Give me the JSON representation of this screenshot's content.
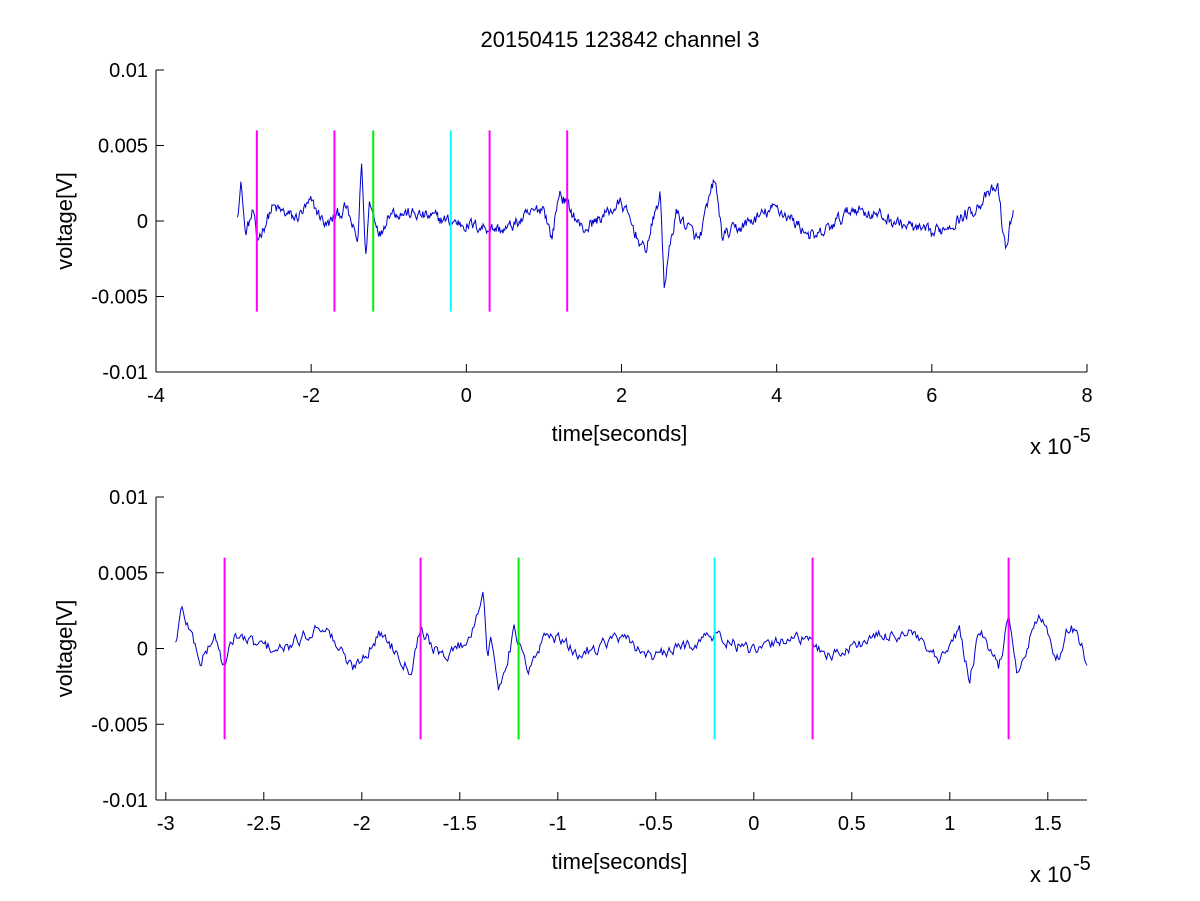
{
  "figure_title": "20150415 123842 channel 3",
  "colors": {
    "signal": "#0000cc",
    "magenta": "#ff00ff",
    "green": "#00ee00",
    "cyan": "#00ffff",
    "axis": "#000000"
  },
  "chart_data": [
    {
      "type": "line",
      "title": "20150415 123842 channel 3",
      "xlabel": "time[seconds]",
      "ylabel": "voltage[V]",
      "x_exponent": "x 10",
      "x_exponent_power": "-5",
      "xlim": [
        -4,
        8
      ],
      "ylim": [
        -0.01,
        0.01
      ],
      "x_ticks": [
        -4,
        -2,
        0,
        2,
        4,
        6,
        8
      ],
      "x_tick_labels": [
        "-4",
        "-2",
        "0",
        "2",
        "4",
        "6",
        "8"
      ],
      "y_ticks": [
        0.01,
        0.005,
        0,
        -0.005,
        -0.01
      ],
      "y_tick_labels": [
        "0.01",
        "0.005",
        "0",
        "-0.005",
        "-0.01"
      ],
      "grid": false,
      "signal": {
        "x_range": [
          -2.95,
          7.05
        ],
        "x": [
          -2.95,
          -2.9,
          -2.85,
          -2.75,
          -2.7,
          -2.5,
          -2.2,
          -2.0,
          -1.8,
          -1.55,
          -1.4,
          -1.35,
          -1.3,
          -1.25,
          -1.1,
          -1.0,
          -0.5,
          0.0,
          0.5,
          1.0,
          1.1,
          1.2,
          1.5,
          2.0,
          2.3,
          2.5,
          2.55,
          2.7,
          3.0,
          3.2,
          3.3,
          4.0,
          4.5,
          5.0,
          6.0,
          6.5,
          6.85,
          6.95,
          7.05
        ],
        "y": [
          0.0008,
          0.0034,
          -0.0012,
          0.0008,
          -0.0018,
          0.0012,
          0.0002,
          0.0016,
          -0.0004,
          0.0012,
          -0.002,
          0.0054,
          -0.0033,
          0.0016,
          -0.0012,
          0.0009,
          0.0004,
          -0.0003,
          -0.0008,
          0.0013,
          -0.0016,
          0.0026,
          -0.0008,
          0.0016,
          -0.0028,
          0.0024,
          -0.0056,
          0.0008,
          -0.0018,
          0.0038,
          -0.0014,
          0.0012,
          -0.0016,
          0.0012,
          -0.0012,
          0.0008,
          0.003,
          -0.0027,
          0.0012
        ]
      },
      "markers": [
        {
          "x": -2.7,
          "color": "magenta",
          "y_range": [
            -0.006,
            0.006
          ]
        },
        {
          "x": -1.7,
          "color": "magenta",
          "y_range": [
            -0.006,
            0.006
          ]
        },
        {
          "x": -1.2,
          "color": "green",
          "y_range": [
            -0.006,
            0.006
          ]
        },
        {
          "x": -0.2,
          "color": "cyan",
          "y_range": [
            -0.006,
            0.006
          ]
        },
        {
          "x": 0.3,
          "color": "magenta",
          "y_range": [
            -0.006,
            0.006
          ]
        },
        {
          "x": 1.3,
          "color": "magenta",
          "y_range": [
            -0.006,
            0.006
          ]
        }
      ]
    },
    {
      "type": "line",
      "title": "",
      "xlabel": "time[seconds]",
      "ylabel": "voltage[V]",
      "x_exponent": "x 10",
      "x_exponent_power": "-5",
      "xlim": [
        -3.05,
        1.7
      ],
      "ylim": [
        -0.01,
        0.01
      ],
      "x_ticks": [
        -3,
        -2.5,
        -2,
        -1.5,
        -1,
        -0.5,
        0,
        0.5,
        1,
        1.5
      ],
      "x_tick_labels": [
        "-3",
        "-2.5",
        "-2",
        "-1.5",
        "-1",
        "-0.5",
        "0",
        "0.5",
        "1",
        "1.5"
      ],
      "y_ticks": [
        0.01,
        0.005,
        0,
        -0.005,
        -0.01
      ],
      "y_tick_labels": [
        "0.01",
        "0.005",
        "0",
        "-0.005",
        "-0.01"
      ],
      "grid": false,
      "signal": {
        "x_range": [
          -2.95,
          1.7
        ],
        "x": [
          -2.95,
          -2.92,
          -2.88,
          -2.82,
          -2.75,
          -2.7,
          -2.65,
          -2.55,
          -2.4,
          -2.2,
          -2.05,
          -1.9,
          -1.75,
          -1.7,
          -1.6,
          -1.45,
          -1.38,
          -1.36,
          -1.34,
          -1.3,
          -1.22,
          -1.15,
          -1.05,
          -0.9,
          -0.7,
          -0.5,
          -0.3,
          -0.2,
          0.0,
          0.2,
          0.4,
          0.6,
          0.8,
          0.95,
          1.05,
          1.1,
          1.15,
          1.25,
          1.3,
          1.35,
          1.45,
          1.55,
          1.62,
          1.7
        ],
        "y": [
          0.0005,
          0.0034,
          0.0018,
          -0.0012,
          0.0012,
          -0.0018,
          0.0012,
          0.0004,
          -0.0002,
          0.0022,
          -0.0018,
          0.0014,
          -0.0018,
          0.002,
          -0.0008,
          0.0008,
          0.0054,
          -0.0008,
          0.0006,
          -0.0034,
          0.0016,
          -0.0022,
          0.0016,
          -0.0006,
          0.001,
          -0.0008,
          0.0006,
          0.0012,
          -0.0004,
          0.0012,
          -0.0006,
          0.0009,
          0.0014,
          -0.0014,
          0.0018,
          -0.003,
          0.0016,
          -0.0018,
          0.0028,
          -0.0024,
          0.003,
          -0.0008,
          0.0024,
          -0.0012
        ]
      },
      "markers": [
        {
          "x": -2.7,
          "color": "magenta",
          "y_range": [
            -0.006,
            0.006
          ]
        },
        {
          "x": -1.7,
          "color": "magenta",
          "y_range": [
            -0.006,
            0.006
          ]
        },
        {
          "x": -1.2,
          "color": "green",
          "y_range": [
            -0.006,
            0.006
          ]
        },
        {
          "x": -0.2,
          "color": "cyan",
          "y_range": [
            -0.006,
            0.006
          ]
        },
        {
          "x": 0.3,
          "color": "magenta",
          "y_range": [
            -0.006,
            0.006
          ]
        },
        {
          "x": 1.3,
          "color": "magenta",
          "y_range": [
            -0.006,
            0.006
          ]
        }
      ]
    }
  ]
}
